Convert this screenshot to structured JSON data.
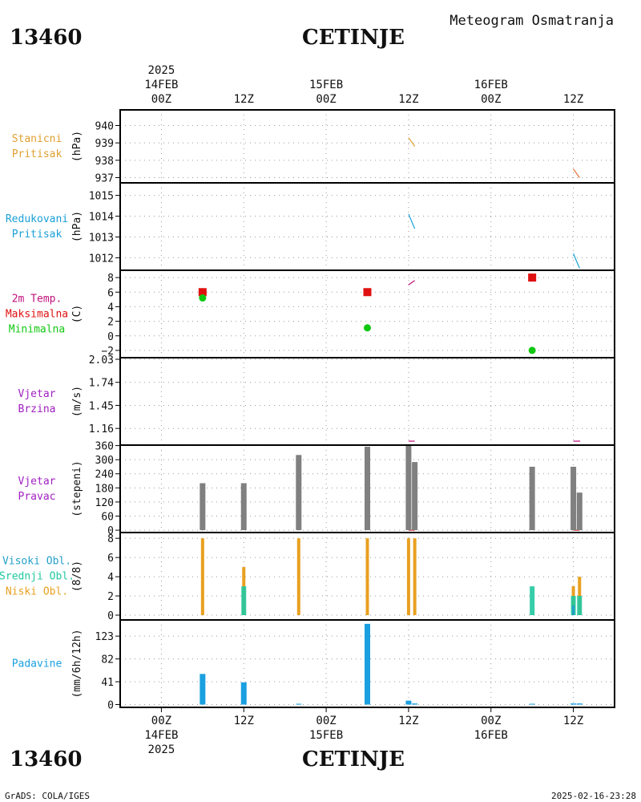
{
  "header": {
    "station_id": "13460",
    "station_name": "CETINJE",
    "subtitle": "Meteogram Osmatranja",
    "footer_left": "GrADS: COLA/IGES",
    "footer_right": "2025-02-16-23:28"
  },
  "colors": {
    "station_pressure": "#e0a030",
    "reduced_pressure": "#1aa0d8",
    "max_temp": "#e01010",
    "min_temp": "#10c810",
    "wind": "#a020c0",
    "wind_dir_bar": "#808080",
    "high_cloud": "#20a0c8",
    "mid_cloud": "#20c8a0",
    "low_cloud": "#e8a020",
    "precip": "#1aa0e0",
    "temp_label": "#c0107a"
  },
  "chart_data": {
    "type": "meteogram",
    "x_axis": {
      "unit": "hours since 2025-02-14 00Z",
      "range": [
        -6,
        66
      ],
      "ticks": [
        {
          "hour": 0,
          "top": "00Z",
          "mid": "14FEB",
          "year": "2025"
        },
        {
          "hour": 12,
          "top": "12Z",
          "mid": "",
          "year": ""
        },
        {
          "hour": 24,
          "top": "00Z",
          "mid": "15FEB",
          "year": ""
        },
        {
          "hour": 36,
          "top": "12Z",
          "mid": "",
          "year": ""
        },
        {
          "hour": 48,
          "top": "00Z",
          "mid": "16FEB",
          "year": ""
        },
        {
          "hour": 60,
          "top": "12Z",
          "mid": "",
          "year": ""
        }
      ]
    },
    "panels": [
      {
        "id": "station_pressure",
        "labels": [
          {
            "text": "Stanicni",
            "color": "#e0a030"
          },
          {
            "text": "Pritisak",
            "color": "#e0a030"
          }
        ],
        "unit": "(hPa)",
        "ylim": [
          936.7,
          940.9
        ],
        "yticks": [
          937,
          938,
          939,
          940
        ],
        "lines": [
          {
            "color": "#e0a030",
            "points": [
              [
                36,
                939.3
              ],
              [
                36.9,
                938.8
              ]
            ]
          },
          {
            "color": "#e07030",
            "points": [
              [
                60,
                937.5
              ],
              [
                60.9,
                937.0
              ]
            ]
          }
        ]
      },
      {
        "id": "reduced_pressure",
        "labels": [
          {
            "text": "Redukovani",
            "color": "#1aa0d8"
          },
          {
            "text": "Pritisak",
            "color": "#1aa0d8"
          }
        ],
        "unit": "(hPa)",
        "ylim": [
          1011.4,
          1015.6
        ],
        "yticks": [
          1012,
          1013,
          1014,
          1015
        ],
        "lines": [
          {
            "color": "#1aa0d8",
            "points": [
              [
                36,
                1014.1
              ],
              [
                36.9,
                1013.4
              ]
            ]
          },
          {
            "color": "#1aa0d8",
            "points": [
              [
                60,
                1012.2
              ],
              [
                60.9,
                1011.5
              ]
            ]
          }
        ]
      },
      {
        "id": "temperature",
        "labels": [
          {
            "text": "2m Temp.",
            "color": "#c0107a"
          },
          {
            "text": "Maksimalna",
            "color": "#e01010"
          },
          {
            "text": "Minimalna",
            "color": "#10c810"
          }
        ],
        "unit": "(C)",
        "ylim": [
          -3,
          9
        ],
        "yticks": [
          -2,
          0,
          2,
          4,
          6,
          8
        ],
        "ytick_labels": [
          "−2",
          "0",
          "2",
          "4",
          "6",
          "8"
        ],
        "max_temp": [
          [
            6,
            6
          ],
          [
            30,
            6
          ],
          [
            54,
            8
          ]
        ],
        "min_temp": [
          [
            6,
            5.2
          ],
          [
            30,
            1.1
          ],
          [
            54,
            -2
          ]
        ],
        "lines": [
          {
            "color": "#c0107a",
            "points": [
              [
                36,
                7.0
              ],
              [
                36.9,
                7.6
              ]
            ]
          }
        ]
      },
      {
        "id": "wind_speed",
        "labels": [
          {
            "text": "Vjetar",
            "color": "#a020c0"
          },
          {
            "text": "Brzina",
            "color": "#a020c0"
          }
        ],
        "unit": "(m/s)",
        "ylim": [
          0.95,
          2.05
        ],
        "yticks": [
          1.16,
          1.45,
          1.74,
          2.03
        ],
        "ytick_labels": [
          "1.16",
          "1.45",
          "1.74",
          "2.03"
        ],
        "lines": [
          {
            "color": "#c0107a",
            "points": [
              [
                36,
                1.0
              ],
              [
                36.9,
                1.0
              ]
            ]
          },
          {
            "color": "#c0107a",
            "points": [
              [
                60,
                1.0
              ],
              [
                61,
                1.0
              ]
            ]
          }
        ]
      },
      {
        "id": "wind_dir",
        "labels": [
          {
            "text": "Vjetar",
            "color": "#a020c0"
          },
          {
            "text": "Pravac",
            "color": "#a020c0"
          }
        ],
        "unit": "(stepeni)",
        "ylim": [
          -10,
          362
        ],
        "yticks": [
          0,
          60,
          120,
          180,
          240,
          300,
          360
        ],
        "bars": [
          [
            6,
            200
          ],
          [
            12,
            200
          ],
          [
            20,
            320
          ],
          [
            30,
            355
          ],
          [
            36,
            360
          ],
          [
            36.9,
            290
          ],
          [
            54,
            270
          ],
          [
            60,
            270
          ],
          [
            60.9,
            160
          ]
        ],
        "lines": [
          {
            "color": "#e01010",
            "points": [
              [
                36,
                0
              ],
              [
                36.9,
                0
              ]
            ]
          },
          {
            "color": "#e01010",
            "points": [
              [
                60,
                0
              ],
              [
                60.9,
                0
              ]
            ]
          }
        ]
      },
      {
        "id": "clouds",
        "labels": [
          {
            "text": "Visoki Obl.",
            "color": "#20a0c8"
          },
          {
            "text": "Srednji Obl.",
            "color": "#20c8a0"
          },
          {
            "text": "Niski Obl.",
            "color": "#e8a020"
          }
        ],
        "unit": "(8/8)",
        "ylim": [
          -0.5,
          8.6
        ],
        "yticks": [
          0,
          2,
          4,
          6,
          8
        ],
        "low": [
          [
            6,
            8
          ],
          [
            12,
            5
          ],
          [
            20,
            8
          ],
          [
            30,
            8
          ],
          [
            36,
            8
          ],
          [
            36.9,
            8
          ],
          [
            60,
            3
          ],
          [
            60.9,
            4
          ]
        ],
        "mid": [
          [
            12,
            3
          ],
          [
            54,
            3
          ],
          [
            60,
            2
          ],
          [
            60.9,
            2
          ]
        ],
        "high": [
          [
            60,
            1
          ]
        ]
      },
      {
        "id": "precip",
        "labels": [
          {
            "text": "Padavine",
            "color": "#1aa0e0"
          }
        ],
        "unit": "(mm/6h/12h)",
        "ylim": [
          -5,
          152
        ],
        "yticks": [
          0,
          41,
          82,
          123
        ],
        "values": [
          [
            6,
            55
          ],
          [
            12,
            40
          ],
          [
            20,
            1
          ],
          [
            30,
            145
          ],
          [
            36,
            7
          ],
          [
            36.9,
            2
          ],
          [
            54,
            1
          ],
          [
            60,
            2
          ],
          [
            60.9,
            2
          ]
        ]
      }
    ]
  }
}
